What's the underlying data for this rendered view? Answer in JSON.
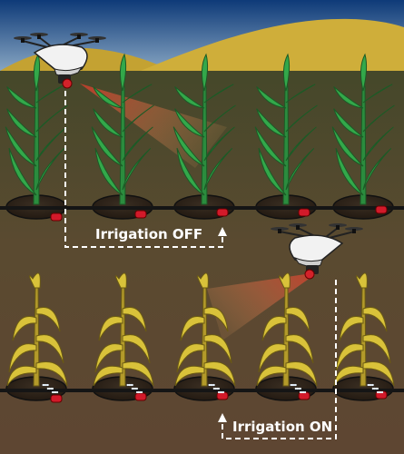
{
  "labels": {
    "irrigation_off": "Irrigation OFF",
    "irrigation_on": "Irrigation ON"
  },
  "colors": {
    "sky_top": "#0e3a78",
    "sky_bottom": "#7fa0c0",
    "hill": "#c9a632",
    "soil_top": "#4d4a2a",
    "soil_bottom": "#5c4531",
    "healthy_plant": "#33a84a",
    "stressed_plant": "#d9c23a",
    "sensor_beam": "#e0553a",
    "pipe": "#1a1a1a",
    "valve": "#d21a2a"
  },
  "scene": {
    "top_row": {
      "state": "healthy",
      "plants": 5
    },
    "bottom_row": {
      "state": "stressed",
      "plants": 5
    },
    "drones": [
      {
        "name": "drone-top",
        "row": "top",
        "scanning": "healthy-crops"
      },
      {
        "name": "drone-bottom",
        "row": "bottom",
        "scanning": "stressed-crops"
      }
    ]
  }
}
